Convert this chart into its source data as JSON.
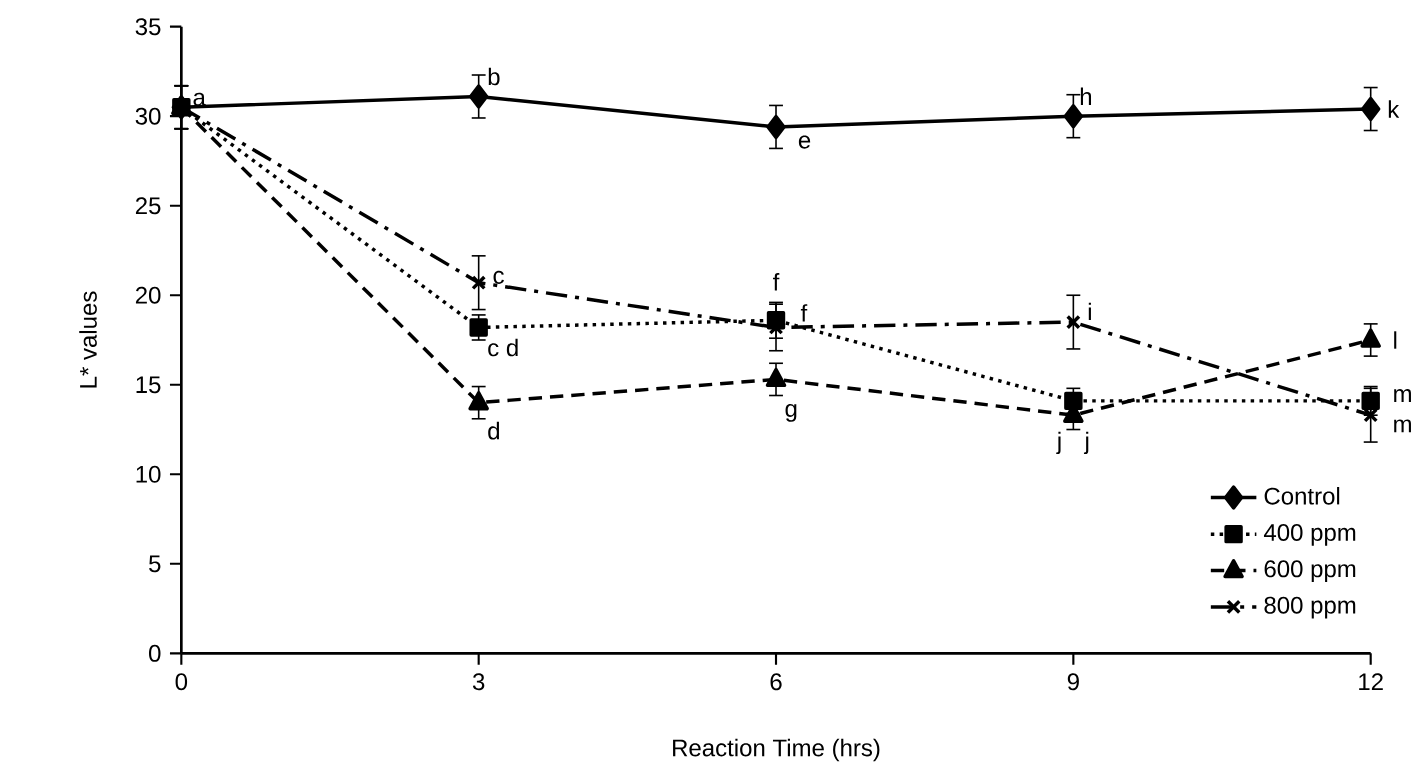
{
  "chart_data": {
    "type": "line",
    "xlabel": "Reaction Time (hrs)",
    "ylabel": "L* values",
    "x": [
      0,
      3,
      6,
      9,
      12
    ],
    "series": [
      {
        "name": "Control",
        "color": "#000000",
        "marker": "diamond",
        "line_style": "solid",
        "values": [
          30.5,
          31.1,
          29.4,
          30.0,
          30.4
        ],
        "errors": [
          1.2,
          1.2,
          1.2,
          1.2,
          1.2
        ]
      },
      {
        "name": "400 ppm",
        "color": "#000000",
        "marker": "square",
        "line_style": "dotted",
        "values": [
          30.5,
          18.2,
          18.6,
          14.1,
          14.1
        ],
        "errors": [
          1.2,
          0.7,
          1.0,
          0.7,
          0.8
        ]
      },
      {
        "name": "600 ppm",
        "color": "#000000",
        "marker": "triangle",
        "line_style": "dashed",
        "values": [
          30.5,
          14.0,
          15.3,
          13.3,
          17.5
        ],
        "errors": [
          1.2,
          0.9,
          0.9,
          0.8,
          0.9
        ]
      },
      {
        "name": "800 ppm",
        "color": "#000000",
        "marker": "cross",
        "line_style": "dashdot",
        "values": [
          30.5,
          20.7,
          18.2,
          18.5,
          13.3
        ],
        "errors": [
          1.2,
          1.5,
          1.3,
          1.5,
          1.5
        ]
      }
    ],
    "xlim": [
      0,
      12
    ],
    "xticks": [
      0,
      3,
      6,
      9,
      12
    ],
    "ylim": [
      0,
      35
    ],
    "yticks": [
      0,
      5,
      10,
      15,
      20,
      25,
      30,
      35
    ],
    "grid": false,
    "legend": "bottom right",
    "annotations": [
      {
        "text": "a",
        "x": 0,
        "y": 30.5
      },
      {
        "text": "b",
        "x": 3,
        "y": 31.1
      },
      {
        "text": "e",
        "x": 6,
        "y": 29.4
      },
      {
        "text": "h",
        "x": 9,
        "y": 30.0
      },
      {
        "text": "k",
        "x": 12,
        "y": 30.4
      },
      {
        "text": "c",
        "x": 3,
        "y": 20.7
      },
      {
        "text": "c d",
        "x": 3,
        "y": 18.2
      },
      {
        "text": "d",
        "x": 3,
        "y": 14.0
      },
      {
        "text": "f",
        "x": 6,
        "y": 18.6
      },
      {
        "text": "f",
        "x": 6,
        "y": 18.2
      },
      {
        "text": "g",
        "x": 6,
        "y": 15.3
      },
      {
        "text": "i",
        "x": 9,
        "y": 18.5
      },
      {
        "text": "j",
        "x": 9,
        "y": 13.3
      },
      {
        "text": "j",
        "x": 9,
        "y": 13.3
      },
      {
        "text": "l",
        "x": 12,
        "y": 17.5
      },
      {
        "text": "m",
        "x": 12,
        "y": 14.1
      },
      {
        "text": "m",
        "x": 12,
        "y": 13.3
      }
    ]
  }
}
